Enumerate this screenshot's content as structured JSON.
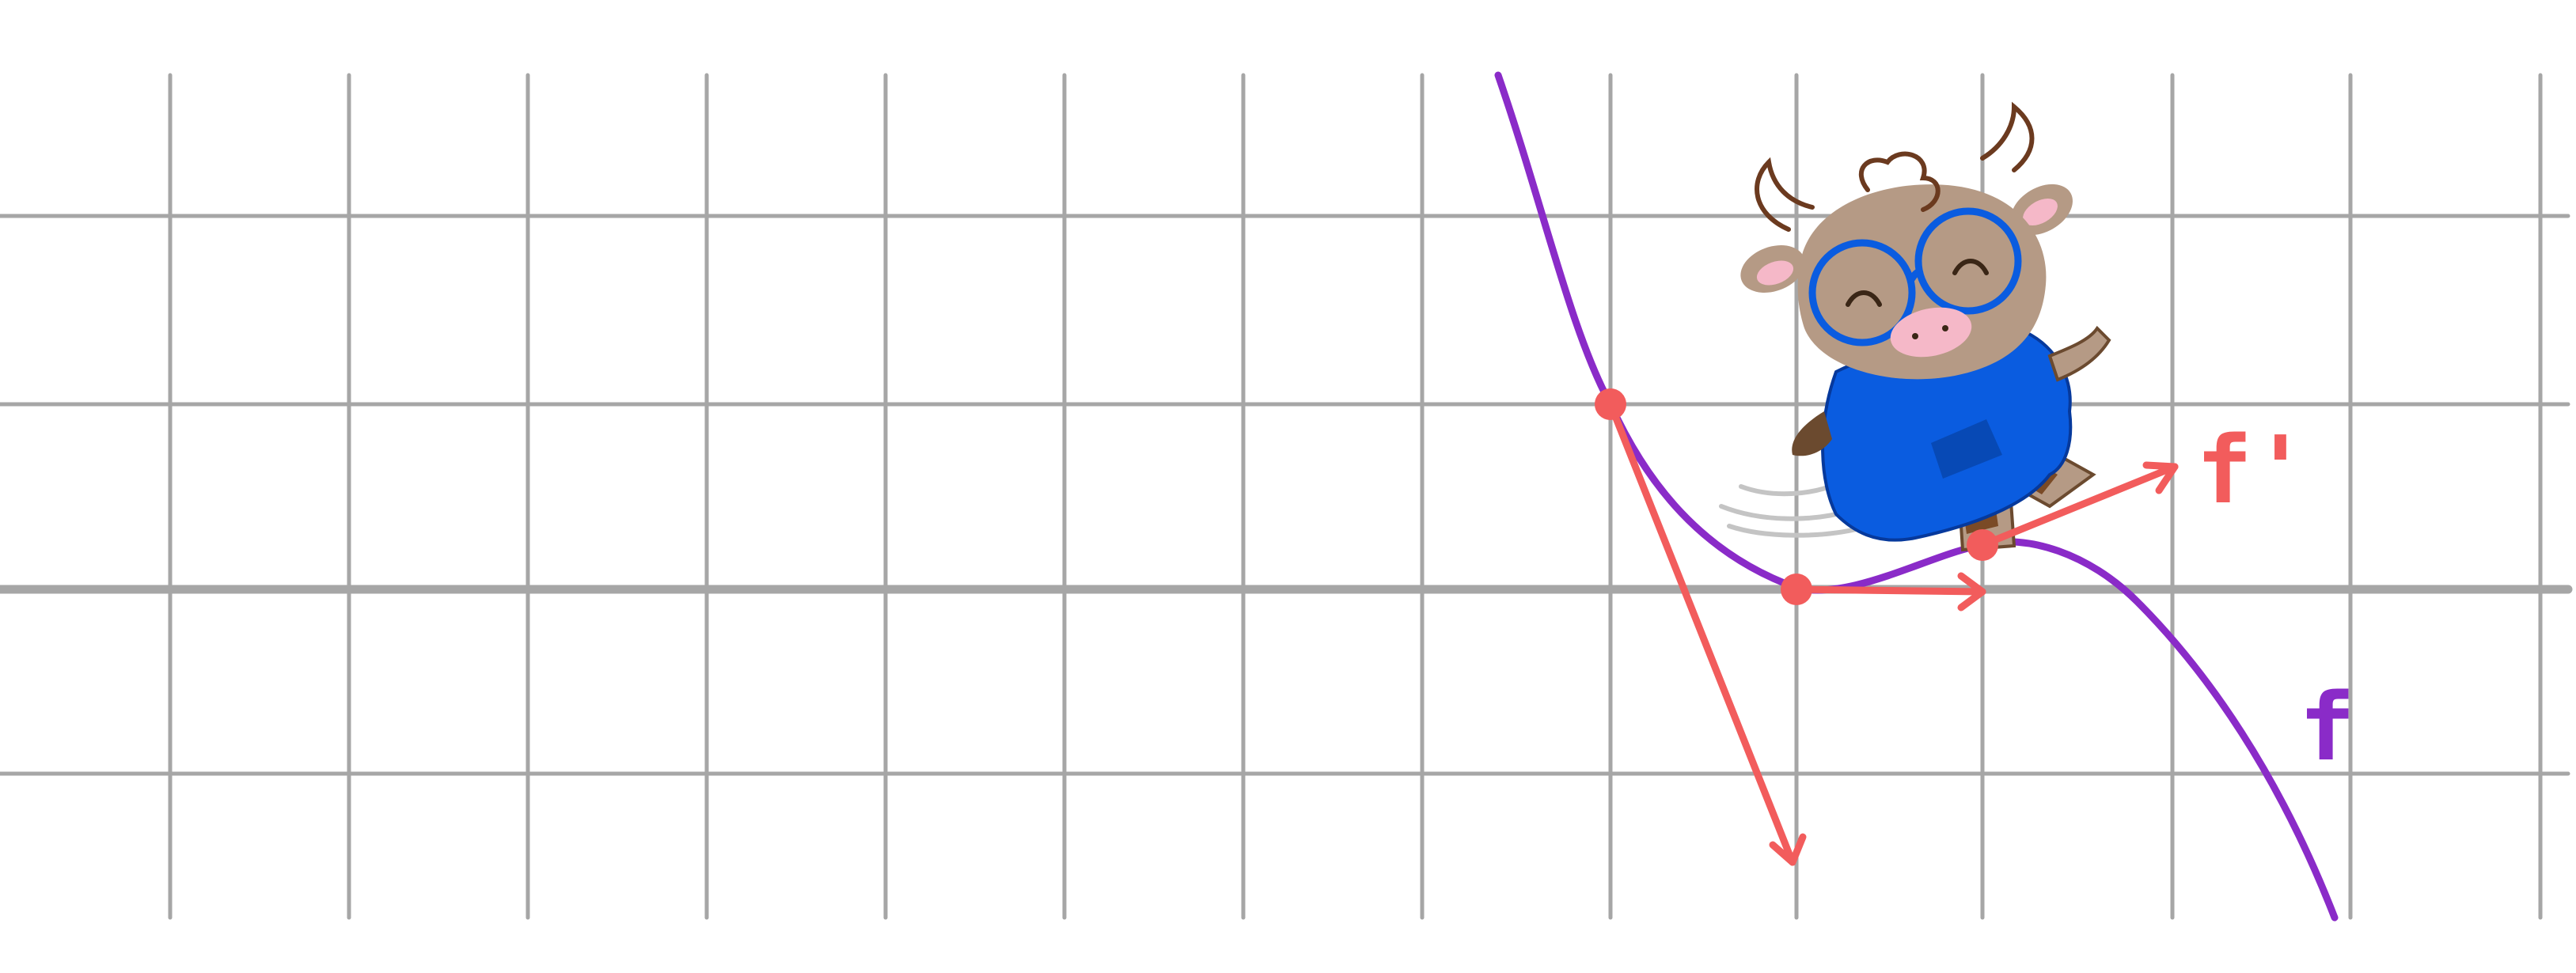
{
  "labels": {
    "function": "f",
    "derivative": "f'"
  },
  "colors": {
    "background": "#ffffff",
    "grid": "#a6a6a6",
    "curve": "#8a2bc8",
    "tangent_vectors": "#f25c5c",
    "mascot_shirt": "#0a5ce0",
    "mascot_fur": "#b59a85"
  },
  "icons": {
    "mascot": "cartoon-cow-with-glasses-icon"
  }
}
